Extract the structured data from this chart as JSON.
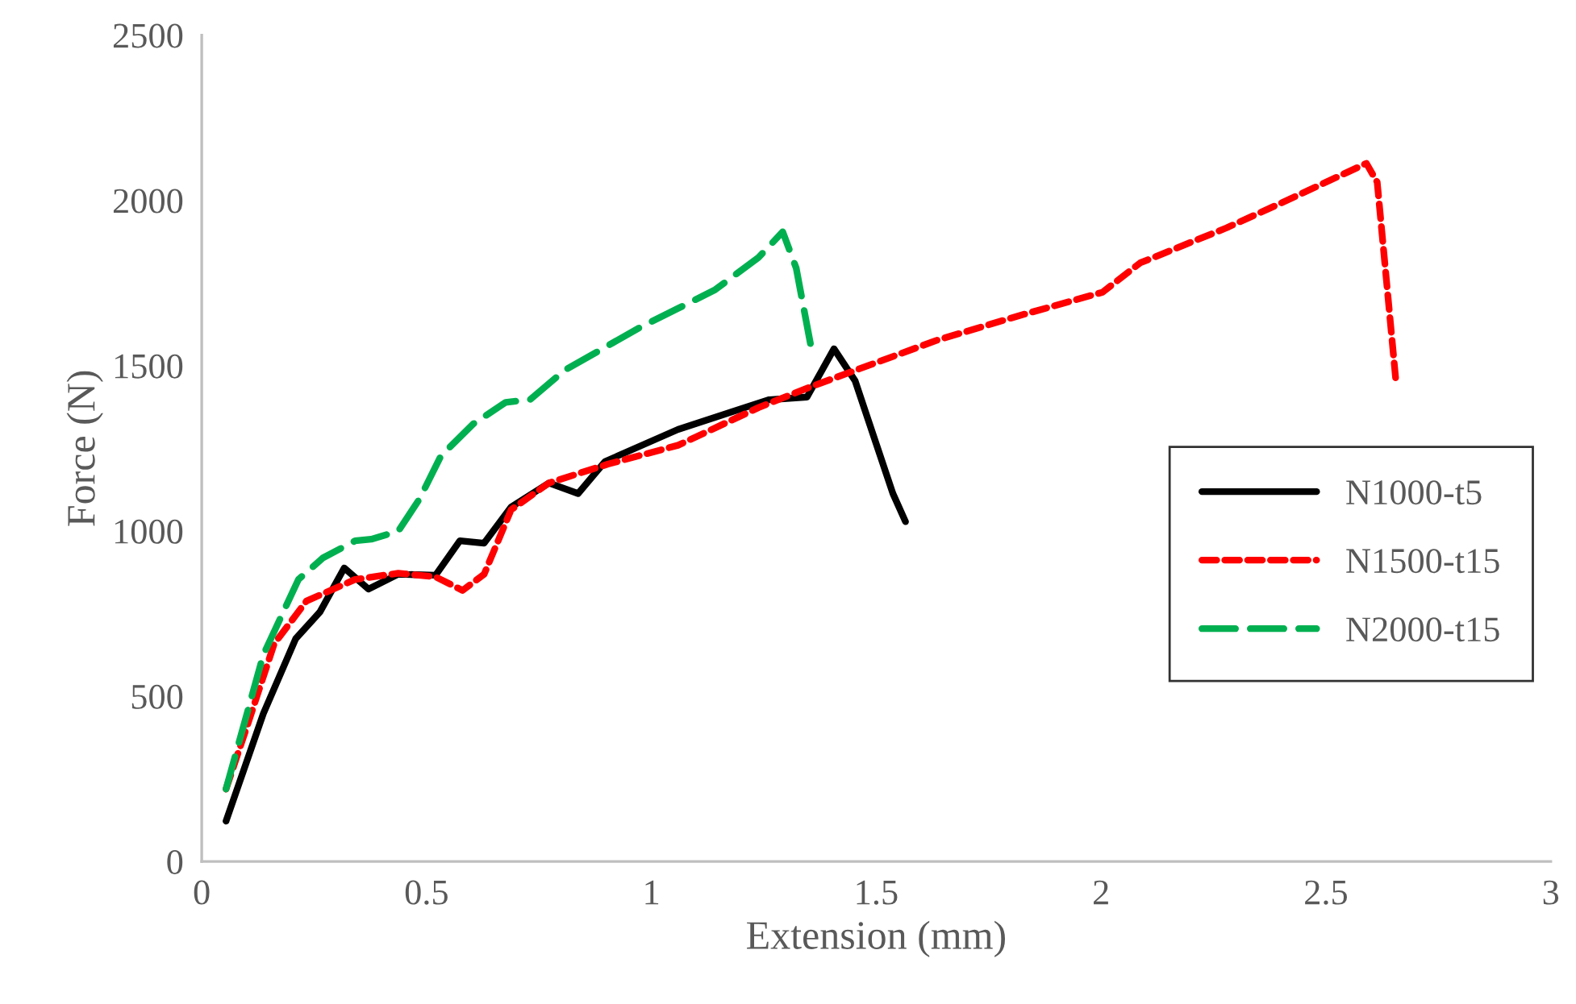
{
  "chart_data": {
    "type": "line",
    "xlabel": "Extension (mm)",
    "ylabel": "Force (N)",
    "xlim": [
      0,
      3
    ],
    "xticks": [
      0,
      0.5,
      1,
      1.5,
      2,
      2.5,
      3
    ],
    "ylim": [
      0,
      2500
    ],
    "yticks": [
      0,
      500,
      1000,
      1500,
      2000,
      2500
    ],
    "grid": false,
    "legend": "right",
    "marker": "none",
    "series": [
      {
        "name": "N1000-t5",
        "color": "#000000",
        "line_style": "solid",
        "x": [
          0.054,
          0.137,
          0.209,
          0.263,
          0.317,
          0.371,
          0.437,
          0.52,
          0.574,
          0.628,
          0.688,
          0.772,
          0.837,
          0.897,
          1.059,
          1.178,
          1.262,
          1.346,
          1.406,
          1.453,
          1.501,
          1.537,
          1.565
        ],
        "values": [
          122,
          447,
          674,
          755,
          888,
          824,
          869,
          866,
          970,
          963,
          1072,
          1145,
          1113,
          1210,
          1307,
          1360,
          1397,
          1405,
          1551,
          1454,
          1259,
          1113,
          1028
        ]
      },
      {
        "name": "N1500-t15",
        "color": "#ff0000",
        "line_style": "dotted",
        "x": [
          0.054,
          0.102,
          0.161,
          0.233,
          0.341,
          0.437,
          0.52,
          0.58,
          0.628,
          0.688,
          0.772,
          0.903,
          1.059,
          1.238,
          1.358,
          1.633,
          1.812,
          2.003,
          2.087,
          2.279,
          2.41,
          2.59,
          2.614,
          2.655
        ],
        "values": [
          219,
          414,
          658,
          788,
          853,
          872,
          861,
          820,
          869,
          1064,
          1145,
          1202,
          1259,
          1373,
          1438,
          1576,
          1649,
          1722,
          1811,
          1917,
          1998,
          2112,
          2055,
          1462
        ]
      },
      {
        "name": "N2000-t15",
        "color": "#00b050",
        "line_style": "dashed",
        "x": [
          0.054,
          0.137,
          0.215,
          0.269,
          0.341,
          0.377,
          0.437,
          0.484,
          0.532,
          0.604,
          0.676,
          0.73,
          0.807,
          0.975,
          1.059,
          1.142,
          1.238,
          1.292,
          1.322,
          1.358
        ],
        "values": [
          219,
          625,
          853,
          918,
          970,
          975,
          999,
          1096,
          1227,
          1324,
          1389,
          1397,
          1486,
          1616,
          1673,
          1730,
          1827,
          1905,
          1795,
          1535
        ]
      }
    ]
  }
}
